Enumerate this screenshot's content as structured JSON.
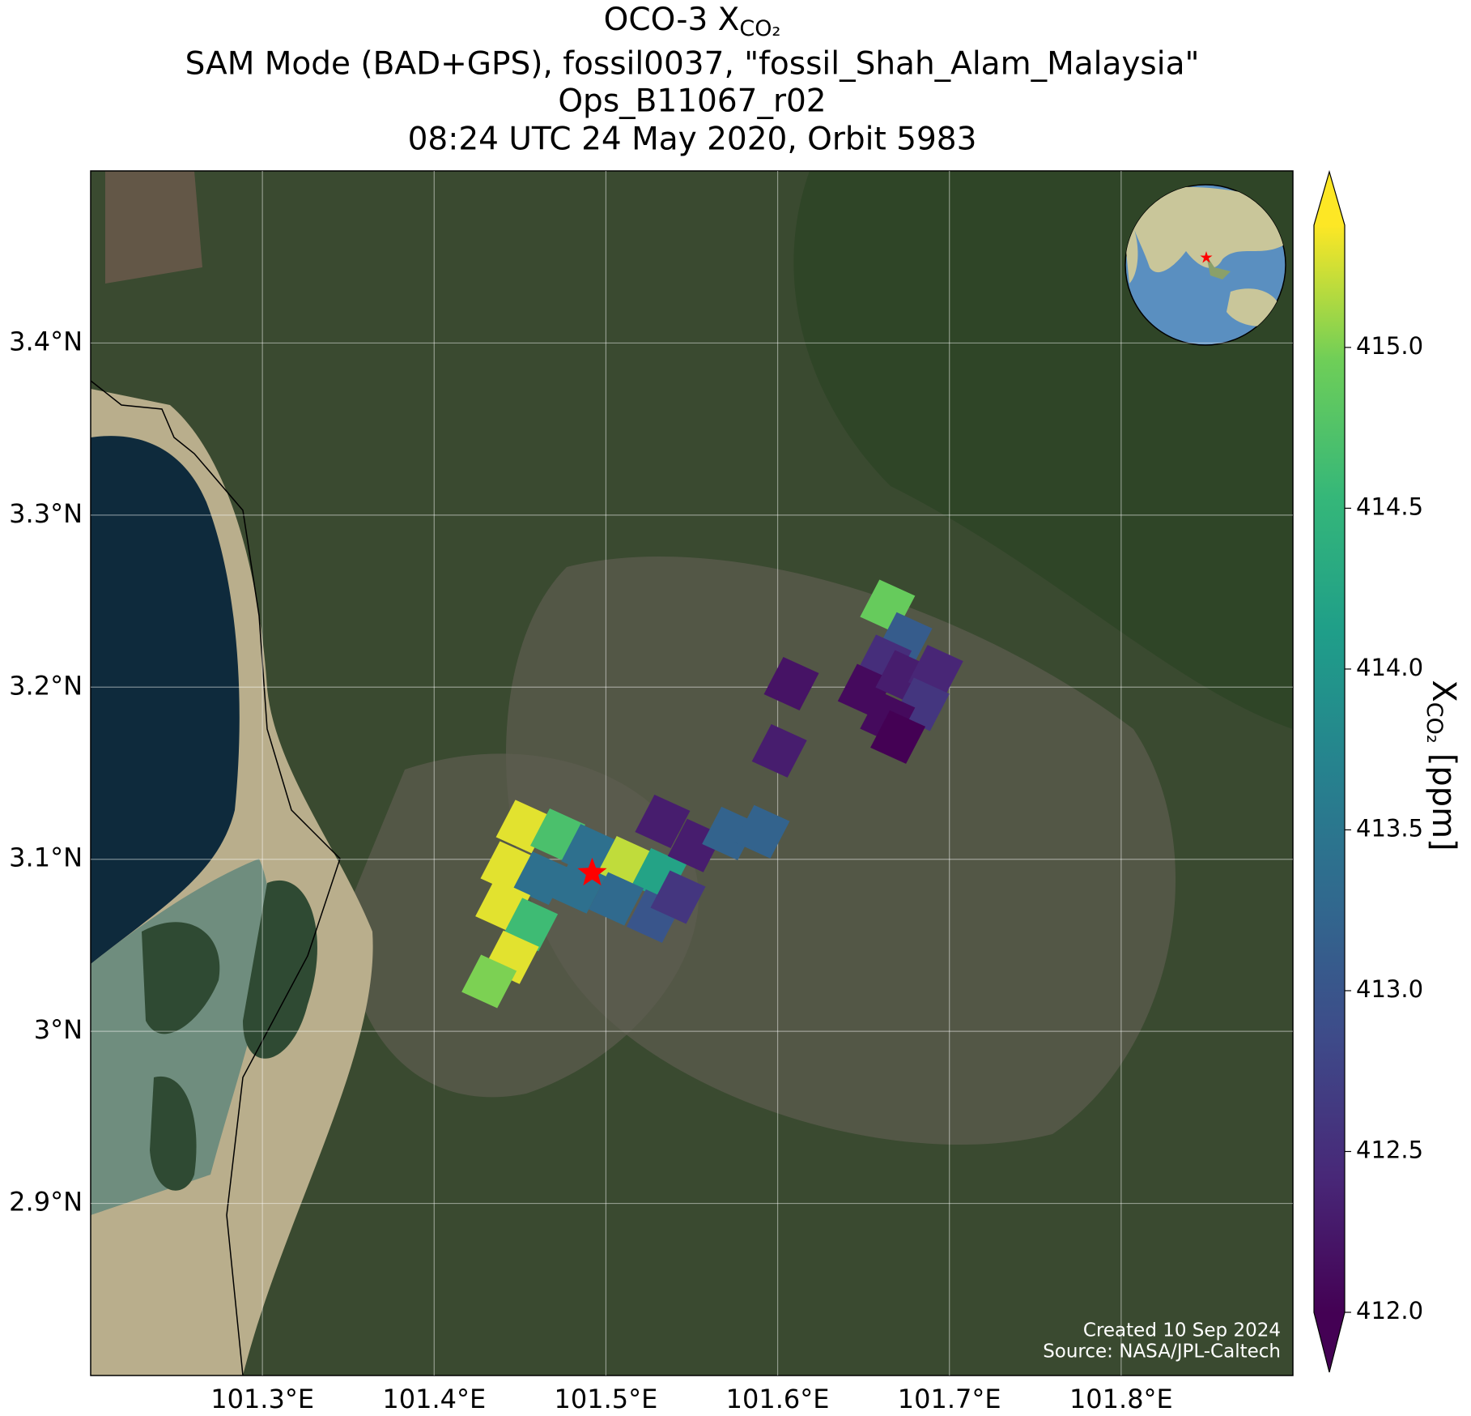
{
  "chart_data": {
    "type": "map",
    "title": {
      "text": "OCO-3 X",
      "subscript": "CO₂"
    },
    "subtitles": [
      "SAM Mode (BAD+GPS), fossil0037, \"fossil_Shah_Alam_Malaysia\"",
      "Ops_B11067_r02",
      "08:24 UTC 24 May 2020, Orbit 5983"
    ],
    "xlim": [
      101.2,
      101.9
    ],
    "ylim": [
      2.8,
      3.5
    ],
    "xticks": [
      {
        "value": 101.3,
        "label": "101.3°E"
      },
      {
        "value": 101.4,
        "label": "101.4°E"
      },
      {
        "value": 101.5,
        "label": "101.5°E"
      },
      {
        "value": 101.6,
        "label": "101.6°E"
      },
      {
        "value": 101.7,
        "label": "101.7°E"
      },
      {
        "value": 101.8,
        "label": "101.8°E"
      }
    ],
    "yticks": [
      {
        "value": 2.9,
        "label": "2.9°N"
      },
      {
        "value": 3.0,
        "label": "3°N"
      },
      {
        "value": 3.1,
        "label": "3.1°N"
      },
      {
        "value": 3.2,
        "label": "3.2°N"
      },
      {
        "value": 3.3,
        "label": "3.3°N"
      },
      {
        "value": 3.4,
        "label": "3.4°N"
      }
    ],
    "grid": true,
    "footprints": {
      "lon": [
        101.452,
        101.472,
        101.49,
        101.511,
        101.531,
        101.443,
        101.462,
        101.484,
        101.506,
        101.528,
        101.542,
        101.552,
        101.44,
        101.456,
        101.445,
        101.432,
        101.533,
        101.572,
        101.591,
        101.601,
        101.608,
        101.664,
        101.674,
        101.662,
        101.651,
        101.673,
        101.692,
        101.684,
        101.664,
        101.67
      ],
      "lat": [
        3.119,
        3.114,
        3.105,
        3.098,
        3.091,
        3.095,
        3.089,
        3.084,
        3.077,
        3.067,
        3.078,
        3.108,
        3.073,
        3.062,
        3.043,
        3.029,
        3.122,
        3.115,
        3.116,
        3.163,
        3.202,
        3.247,
        3.228,
        3.215,
        3.198,
        3.206,
        3.209,
        3.19,
        3.182,
        3.171
      ],
      "values": [
        415.3,
        414.7,
        413.4,
        415.2,
        414.2,
        415.3,
        413.4,
        413.4,
        413.3,
        413.0,
        412.6,
        412.3,
        415.3,
        414.6,
        415.3,
        415.0,
        412.3,
        413.2,
        413.2,
        412.3,
        412.2,
        414.9,
        413.1,
        412.5,
        412.1,
        412.3,
        412.4,
        412.6,
        412.1,
        412.0
      ]
    },
    "site": {
      "lon": 101.492,
      "lat": 3.092,
      "color": "#ff0000"
    },
    "colorbar": {
      "colormap": "viridis",
      "clim": [
        412.0,
        415.38
      ],
      "ticks": [
        {
          "value": 412,
          "label": "412.0"
        },
        412.5,
        {
          "value": 413,
          "label": "413.0"
        },
        413.5,
        {
          "value": 414,
          "label": "414.0"
        },
        414.5,
        {
          "value": 415,
          "label": "415.0"
        }
      ],
      "label": {
        "symbol": "X",
        "subscript": "CO₂",
        "unit": "[ppm]"
      }
    },
    "credits": [
      "Created 10 Sep 2024",
      "Source: NASA/JPL-Caltech"
    ]
  }
}
